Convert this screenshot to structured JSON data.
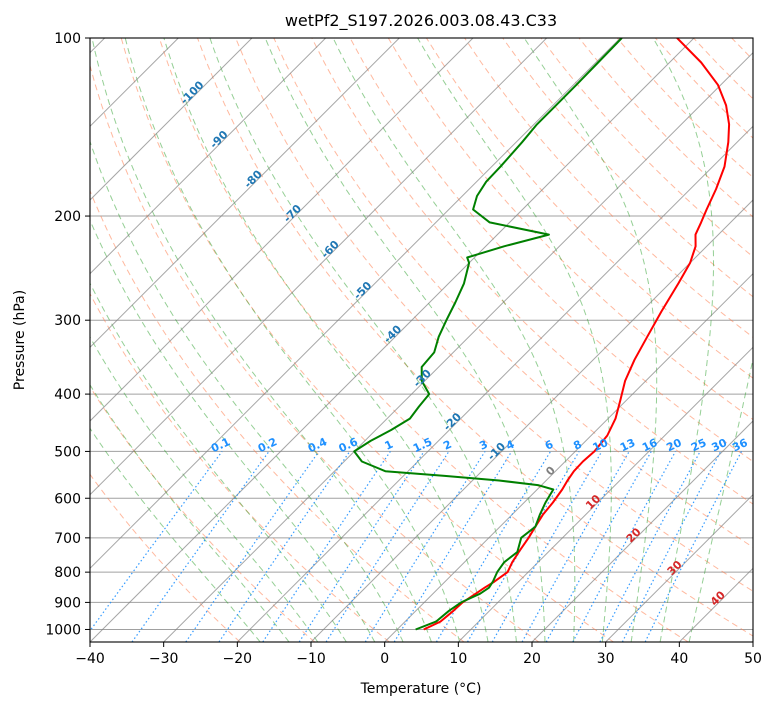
{
  "colors": {
    "temperature": "#ff0000",
    "dewpoint": "#008000",
    "isotherm": "#808080",
    "isobar_grid": "#a0a0a0",
    "dry_adiabat": "#ff7f50",
    "moist_adiabat": "#2ca02c",
    "mixing_ratio": "#1e90ff",
    "height_label": "#1f77b4",
    "brown_adiabat": "#c8a070"
  },
  "chart_data": {
    "type": "line",
    "title": "wetPf2_S197.2026.003.08.43.C33",
    "xlabel": "Temperature (°C)",
    "ylabel": "Pressure (hPa)",
    "xlim": [
      -40,
      50
    ],
    "ylim": [
      1050,
      100
    ],
    "x_ticks": [
      -40,
      -30,
      -20,
      -10,
      0,
      10,
      20,
      30,
      40,
      50
    ],
    "x_tick_labels": [
      "−40",
      "−30",
      "−20",
      "−10",
      "0",
      "10",
      "20",
      "30",
      "40",
      "50"
    ],
    "y_ticks": [
      100,
      200,
      300,
      400,
      500,
      600,
      700,
      800,
      900,
      1000
    ],
    "y_tick_labels": [
      "100",
      "200",
      "300",
      "400",
      "500",
      "600",
      "700",
      "800",
      "900",
      "1000"
    ],
    "series": [
      {
        "name": "Temperature",
        "pressure": [
          1000,
          970,
          930,
          900,
          870,
          850,
          830,
          800,
          770,
          740,
          700,
          670,
          640,
          610,
          580,
          560,
          540,
          520,
          500,
          470,
          440,
          410,
          380,
          350,
          320,
          290,
          260,
          240,
          225,
          215,
          205,
          195,
          180,
          165,
          150,
          140,
          130,
          120,
          110,
          100
        ],
        "values": [
          3.6,
          4.8,
          5.1,
          5.2,
          5.8,
          6.2,
          6.7,
          7.2,
          6.5,
          6.0,
          5.4,
          4.8,
          4.2,
          3.9,
          3.4,
          2.9,
          2.5,
          2.4,
          2.6,
          2.2,
          1.0,
          -0.8,
          -2.8,
          -4.4,
          -5.8,
          -7.3,
          -8.8,
          -10.0,
          -11.5,
          -13.1,
          -14.0,
          -15.0,
          -16.5,
          -18.4,
          -21.2,
          -23.5,
          -26.5,
          -30.4,
          -35.7,
          -42.3
        ]
      },
      {
        "name": "Dewpoint",
        "pressure": [
          1000,
          970,
          930,
          900,
          870,
          850,
          830,
          800,
          770,
          740,
          700,
          670,
          640,
          610,
          580,
          570,
          560,
          550,
          540,
          520,
          500,
          480,
          460,
          440,
          420,
          400,
          380,
          360,
          340,
          320,
          300,
          280,
          260,
          240,
          235,
          225,
          215,
          205,
          195,
          185,
          175,
          165,
          150,
          140,
          130,
          120,
          110,
          100
        ],
        "values": [
          2.5,
          4.2,
          4.5,
          5.0,
          6.4,
          6.8,
          6.5,
          5.8,
          5.4,
          5.8,
          4.4,
          4.8,
          3.8,
          2.9,
          2.2,
          -0.5,
          -6.4,
          -14.4,
          -23.1,
          -27.6,
          -30.0,
          -29.2,
          -27.9,
          -26.9,
          -27.3,
          -27.6,
          -30.4,
          -32.3,
          -32.6,
          -34.1,
          -35.3,
          -36.5,
          -37.9,
          -40.0,
          -41.0,
          -37.5,
          -33.0,
          -42.7,
          -46.7,
          -48.0,
          -48.7,
          -48.8,
          -49.2,
          -49.6,
          -49.6,
          -49.6,
          -49.7,
          -49.8
        ]
      }
    ],
    "isotherm_labels": [
      "-100",
      "-90",
      "-80",
      "-70",
      "-60",
      "-50",
      "-40",
      "-30",
      "-20",
      "-10",
      "0",
      "10",
      "20",
      "30",
      "40"
    ],
    "mixing_ratio_labels": [
      "0.1",
      "0.2",
      "0.4",
      "0.6",
      "1",
      "1.5",
      "2",
      "3",
      "4",
      "6",
      "8",
      "10",
      "13",
      "16",
      "20",
      "25",
      "30",
      "36"
    ],
    "mixing_ratio_values": [
      0.1,
      0.2,
      0.4,
      0.6,
      1,
      1.5,
      2,
      3,
      4,
      6,
      8,
      10,
      13,
      16,
      20,
      25,
      30,
      36
    ],
    "isotherm_label_values": [
      -100,
      -90,
      -80,
      -70,
      -60,
      -50,
      -40,
      -30,
      -20,
      -10,
      0,
      10,
      20,
      30,
      40
    ],
    "isotherm_label_pressures": [
      125,
      150,
      175,
      200,
      230,
      270,
      320,
      380,
      450,
      505,
      545,
      615,
      700,
      795,
      895
    ],
    "grid": true
  }
}
